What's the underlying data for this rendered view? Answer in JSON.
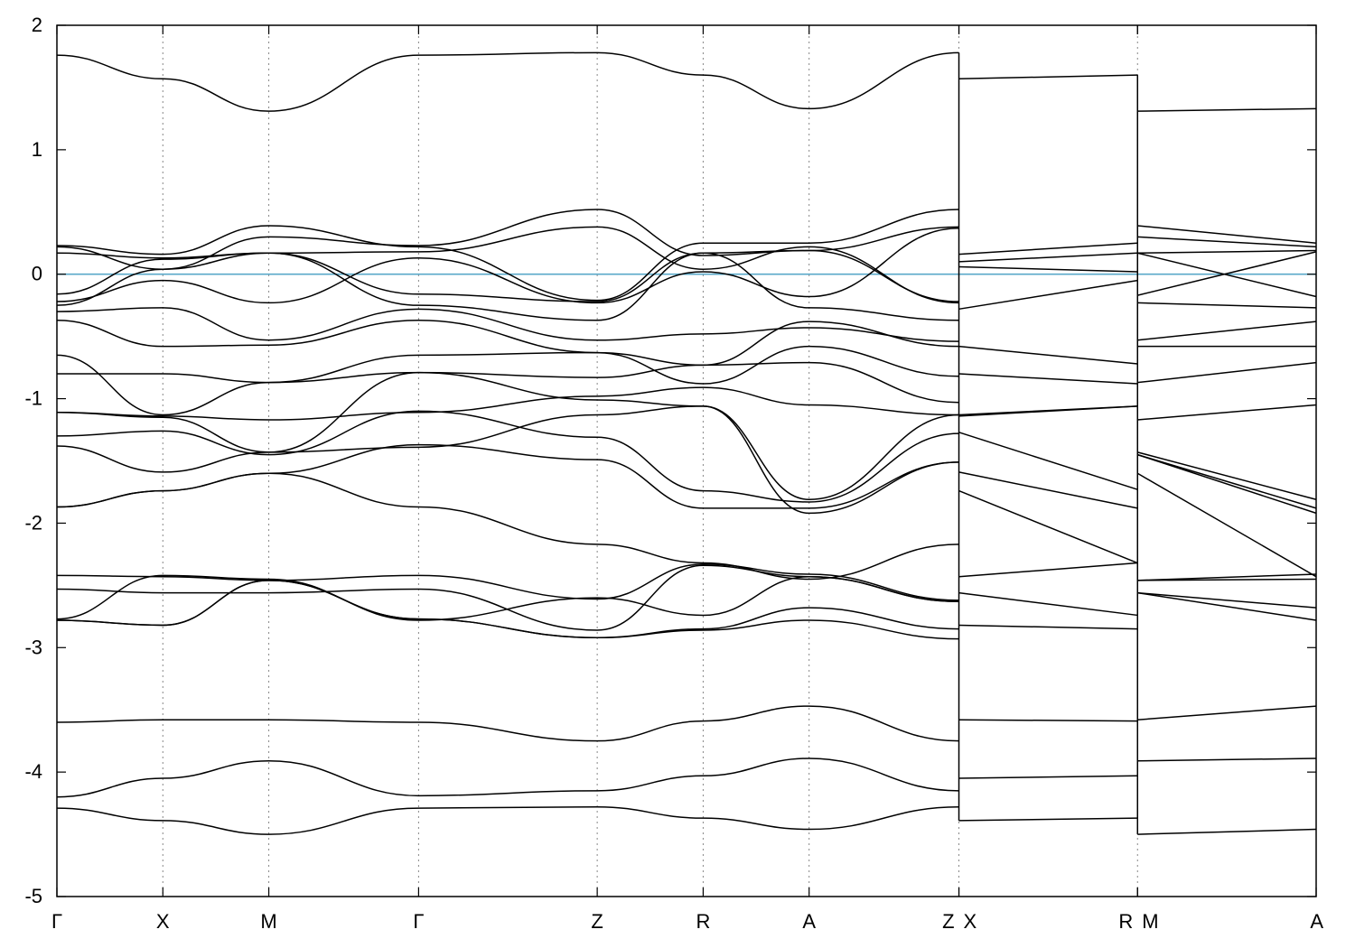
{
  "chart_data": {
    "type": "line",
    "title": "",
    "xlabel": "",
    "ylabel": "",
    "ylim": [
      -5,
      2
    ],
    "yticks": [
      -5,
      -4,
      -3,
      -2,
      -1,
      0,
      1,
      2
    ],
    "kpoints": [
      {
        "label": "Γ",
        "x": 0.0
      },
      {
        "label": "X",
        "x": 1.0
      },
      {
        "label": "M",
        "x": 2.0
      },
      {
        "label": "Γ",
        "x": 3.414
      },
      {
        "label": "Z",
        "x": 5.1
      },
      {
        "label": "R",
        "x": 6.1
      },
      {
        "label": "A",
        "x": 7.1
      },
      {
        "label": "Z",
        "x": 8.514
      },
      {
        "label": "X",
        "x": 8.514
      },
      {
        "label": "R",
        "x": 10.2
      },
      {
        "label": "M",
        "x": 10.2
      },
      {
        "label": "A",
        "x": 11.886
      }
    ],
    "xmax": 11.886,
    "fermi_level": 0,
    "fermi_color": "#5aa9c9",
    "grid": "vertical dashed lines at k-points",
    "legend": "none",
    "series": [
      {
        "segment": 0,
        "values": [
          1.76,
          1.57,
          1.31,
          1.76,
          1.78,
          1.6,
          1.33,
          1.78
        ]
      },
      {
        "segment": 0,
        "values": [
          0.23,
          0.16,
          0.39,
          0.22,
          -0.21,
          0.25,
          0.25,
          0.52
        ]
      },
      {
        "segment": 0,
        "values": [
          0.22,
          0.04,
          0.3,
          0.23,
          0.52,
          0.15,
          0.19,
          0.38
        ]
      },
      {
        "segment": 0,
        "values": [
          0.17,
          0.13,
          0.17,
          0.18,
          0.38,
          0.04,
          0.22,
          -0.23
        ]
      },
      {
        "segment": 0,
        "values": [
          -0.16,
          0.12,
          0.17,
          -0.16,
          -0.22,
          0.17,
          0.19,
          -0.22
        ]
      },
      {
        "segment": 0,
        "values": [
          -0.22,
          -0.05,
          -0.23,
          0.13,
          -0.23,
          0.02,
          -0.18,
          0.37
        ]
      },
      {
        "segment": 0,
        "values": [
          -0.25,
          0.04,
          0.17,
          -0.25,
          -0.37,
          0.17,
          -0.27,
          -0.37
        ]
      },
      {
        "segment": 0,
        "values": [
          -0.3,
          -0.27,
          -0.53,
          -0.28,
          -0.53,
          -0.48,
          -0.43,
          -0.54
        ]
      },
      {
        "segment": 0,
        "values": [
          -0.37,
          -0.58,
          -0.57,
          -0.37,
          -0.63,
          -0.73,
          -0.38,
          -0.58
        ]
      },
      {
        "segment": 0,
        "values": [
          -0.65,
          -1.13,
          -0.87,
          -0.65,
          -0.63,
          -0.88,
          -0.58,
          -0.82
        ]
      },
      {
        "segment": 0,
        "values": [
          -0.8,
          -0.8,
          -0.87,
          -0.79,
          -0.83,
          -0.73,
          -0.71,
          -1.03
        ]
      },
      {
        "segment": 0,
        "values": [
          -1.11,
          -1.14,
          -1.17,
          -1.11,
          -0.98,
          -0.91,
          -1.05,
          -1.13
        ]
      },
      {
        "segment": 0,
        "values": [
          -1.11,
          -1.15,
          -1.43,
          -0.79,
          -1.01,
          -1.06,
          -1.81,
          -1.13
        ]
      },
      {
        "segment": 0,
        "values": [
          -1.3,
          -1.26,
          -1.45,
          -1.1,
          -1.31,
          -1.74,
          -1.83,
          -1.28
        ]
      },
      {
        "segment": 0,
        "values": [
          -1.38,
          -1.59,
          -1.43,
          -1.39,
          -1.13,
          -1.06,
          -1.92,
          -1.51
        ]
      },
      {
        "segment": 0,
        "values": [
          -1.87,
          -1.74,
          -1.6,
          -1.37,
          -1.49,
          -1.88,
          -1.88,
          -1.51
        ]
      },
      {
        "segment": 0,
        "values": [
          -1.87,
          -1.74,
          -1.6,
          -1.87,
          -2.17,
          -2.32,
          -2.45,
          -2.17
        ]
      },
      {
        "segment": 0,
        "values": [
          -2.42,
          -2.43,
          -2.46,
          -2.42,
          -2.61,
          -2.33,
          -2.41,
          -2.62
        ]
      },
      {
        "segment": 0,
        "values": [
          -2.53,
          -2.56,
          -2.56,
          -2.53,
          -2.86,
          -2.34,
          -2.43,
          -2.63
        ]
      },
      {
        "segment": 0,
        "values": [
          -2.77,
          -2.42,
          -2.45,
          -2.78,
          -2.6,
          -2.74,
          -2.43,
          -2.63
        ]
      },
      {
        "segment": 0,
        "values": [
          -2.78,
          -2.82,
          -2.46,
          -2.77,
          -2.92,
          -2.85,
          -2.68,
          -2.85
        ]
      },
      {
        "segment": 0,
        "values": [
          -2.78,
          -2.82,
          -2.46,
          -2.77,
          -2.92,
          -2.86,
          -2.78,
          -2.93
        ]
      },
      {
        "segment": 0,
        "values": [
          -3.6,
          -3.58,
          -3.58,
          -3.6,
          -3.75,
          -3.59,
          -3.47,
          -3.75
        ]
      },
      {
        "segment": 0,
        "values": [
          -4.2,
          -4.05,
          -3.91,
          -4.19,
          -4.15,
          -4.03,
          -3.89,
          -4.15
        ]
      },
      {
        "segment": 0,
        "values": [
          -4.29,
          -4.39,
          -4.5,
          -4.29,
          -4.28,
          -4.37,
          -4.46,
          -4.28
        ]
      },
      {
        "segment": 1,
        "values": [
          1.57,
          1.6
        ]
      },
      {
        "segment": 1,
        "values": [
          0.16,
          0.25
        ]
      },
      {
        "segment": 1,
        "values": [
          0.1,
          0.17
        ]
      },
      {
        "segment": 1,
        "values": [
          0.06,
          0.02
        ]
      },
      {
        "segment": 1,
        "values": [
          -0.28,
          -0.05
        ]
      },
      {
        "segment": 1,
        "values": [
          -0.58,
          -0.72
        ]
      },
      {
        "segment": 1,
        "values": [
          -0.8,
          -0.88
        ]
      },
      {
        "segment": 1,
        "values": [
          -1.13,
          -1.06
        ]
      },
      {
        "segment": 1,
        "values": [
          -1.14,
          -1.06
        ]
      },
      {
        "segment": 1,
        "values": [
          -1.27,
          -1.73
        ]
      },
      {
        "segment": 1,
        "values": [
          -1.59,
          -1.88
        ]
      },
      {
        "segment": 1,
        "values": [
          -1.74,
          -2.32
        ]
      },
      {
        "segment": 1,
        "values": [
          -2.43,
          -2.32
        ]
      },
      {
        "segment": 1,
        "values": [
          -2.56,
          -2.74
        ]
      },
      {
        "segment": 1,
        "values": [
          -2.82,
          -2.85
        ]
      },
      {
        "segment": 1,
        "values": [
          -3.58,
          -3.59
        ]
      },
      {
        "segment": 1,
        "values": [
          -4.05,
          -4.03
        ]
      },
      {
        "segment": 1,
        "values": [
          -4.39,
          -4.37
        ]
      },
      {
        "segment": 2,
        "values": [
          1.31,
          1.33
        ]
      },
      {
        "segment": 2,
        "values": [
          0.39,
          0.25
        ]
      },
      {
        "segment": 2,
        "values": [
          0.3,
          0.22
        ]
      },
      {
        "segment": 2,
        "values": [
          0.17,
          0.19
        ]
      },
      {
        "segment": 2,
        "values": [
          0.17,
          -0.18
        ]
      },
      {
        "segment": 2,
        "values": [
          -0.17,
          0.18
        ]
      },
      {
        "segment": 2,
        "values": [
          -0.23,
          -0.27
        ]
      },
      {
        "segment": 2,
        "values": [
          -0.53,
          -0.38
        ]
      },
      {
        "segment": 2,
        "values": [
          -0.58,
          -0.58
        ]
      },
      {
        "segment": 2,
        "values": [
          -0.87,
          -0.71
        ]
      },
      {
        "segment": 2,
        "values": [
          -1.17,
          -1.05
        ]
      },
      {
        "segment": 2,
        "values": [
          -1.43,
          -1.81
        ]
      },
      {
        "segment": 2,
        "values": [
          -1.45,
          -1.88
        ]
      },
      {
        "segment": 2,
        "values": [
          -1.45,
          -1.92
        ]
      },
      {
        "segment": 2,
        "values": [
          -1.6,
          -2.43
        ]
      },
      {
        "segment": 2,
        "values": [
          -2.46,
          -2.41
        ]
      },
      {
        "segment": 2,
        "values": [
          -2.46,
          -2.45
        ]
      },
      {
        "segment": 2,
        "values": [
          -2.56,
          -2.68
        ]
      },
      {
        "segment": 2,
        "values": [
          -2.56,
          -2.78
        ]
      },
      {
        "segment": 2,
        "values": [
          -3.58,
          -3.47
        ]
      },
      {
        "segment": 2,
        "values": [
          -3.91,
          -3.89
        ]
      },
      {
        "segment": 2,
        "values": [
          -4.5,
          -4.46
        ]
      }
    ]
  }
}
